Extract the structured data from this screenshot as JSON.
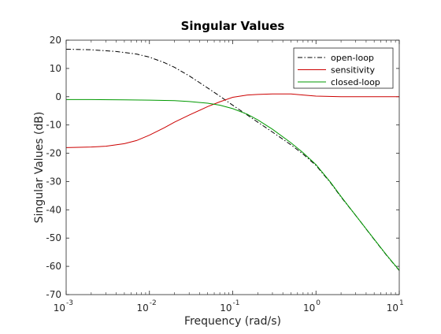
{
  "chart_data": {
    "type": "line",
    "title": "Singular Values",
    "xlabel": "Frequency (rad/s)",
    "ylabel": "Singular Values (dB)",
    "xscale": "log",
    "xlim": [
      0.001,
      10
    ],
    "ylim": [
      -70,
      20
    ],
    "grid": false,
    "legend_position": "top-right",
    "x_ticks": [
      {
        "value": 0.001,
        "base": "10",
        "exp": "-3"
      },
      {
        "value": 0.01,
        "base": "10",
        "exp": "-2"
      },
      {
        "value": 0.1,
        "base": "10",
        "exp": "-1"
      },
      {
        "value": 1,
        "base": "10",
        "exp": "0"
      },
      {
        "value": 10,
        "base": "10",
        "exp": "1"
      }
    ],
    "y_ticks": [
      20,
      10,
      0,
      -10,
      -20,
      -30,
      -40,
      -50,
      -60,
      -70
    ],
    "series": [
      {
        "name": "open-loop",
        "color": "#000000",
        "style": "dashdot",
        "x": [
          0.001,
          0.002,
          0.004,
          0.007,
          0.01,
          0.015,
          0.02,
          0.03,
          0.05,
          0.07,
          0.1,
          0.15,
          0.2,
          0.3,
          0.5,
          0.7,
          1,
          1.5,
          2,
          3,
          5,
          7,
          10
        ],
        "y": [
          16.8,
          16.6,
          16.0,
          15.1,
          14.0,
          12.1,
          10.4,
          7.4,
          3.1,
          0.2,
          -3.0,
          -6.5,
          -9.0,
          -12.5,
          -17.0,
          -20.3,
          -24.3,
          -30.5,
          -35.5,
          -42.0,
          -50.5,
          -56.0,
          -61.5
        ]
      },
      {
        "name": "sensitivity",
        "color": "#cc0000",
        "style": "solid",
        "x": [
          0.001,
          0.002,
          0.003,
          0.005,
          0.007,
          0.01,
          0.015,
          0.02,
          0.03,
          0.05,
          0.07,
          0.1,
          0.15,
          0.2,
          0.3,
          0.5,
          0.7,
          1,
          2,
          5,
          10
        ],
        "y": [
          -18.0,
          -17.8,
          -17.5,
          -16.6,
          -15.5,
          -13.6,
          -11.0,
          -9.0,
          -6.5,
          -3.5,
          -1.8,
          -0.2,
          0.6,
          0.8,
          1.0,
          1.0,
          0.6,
          0.2,
          0.0,
          0.0,
          0.0
        ]
      },
      {
        "name": "closed-loop",
        "color": "#009900",
        "style": "solid",
        "x": [
          0.001,
          0.002,
          0.005,
          0.01,
          0.02,
          0.03,
          0.05,
          0.07,
          0.1,
          0.15,
          0.2,
          0.3,
          0.5,
          0.7,
          1,
          1.5,
          2,
          3,
          5,
          7,
          10
        ],
        "y": [
          -1.0,
          -1.0,
          -1.1,
          -1.2,
          -1.4,
          -1.7,
          -2.3,
          -3.0,
          -4.2,
          -6.2,
          -8.2,
          -11.5,
          -16.3,
          -19.8,
          -24.0,
          -30.3,
          -35.3,
          -42.0,
          -50.4,
          -55.9,
          -61.4
        ]
      }
    ]
  }
}
